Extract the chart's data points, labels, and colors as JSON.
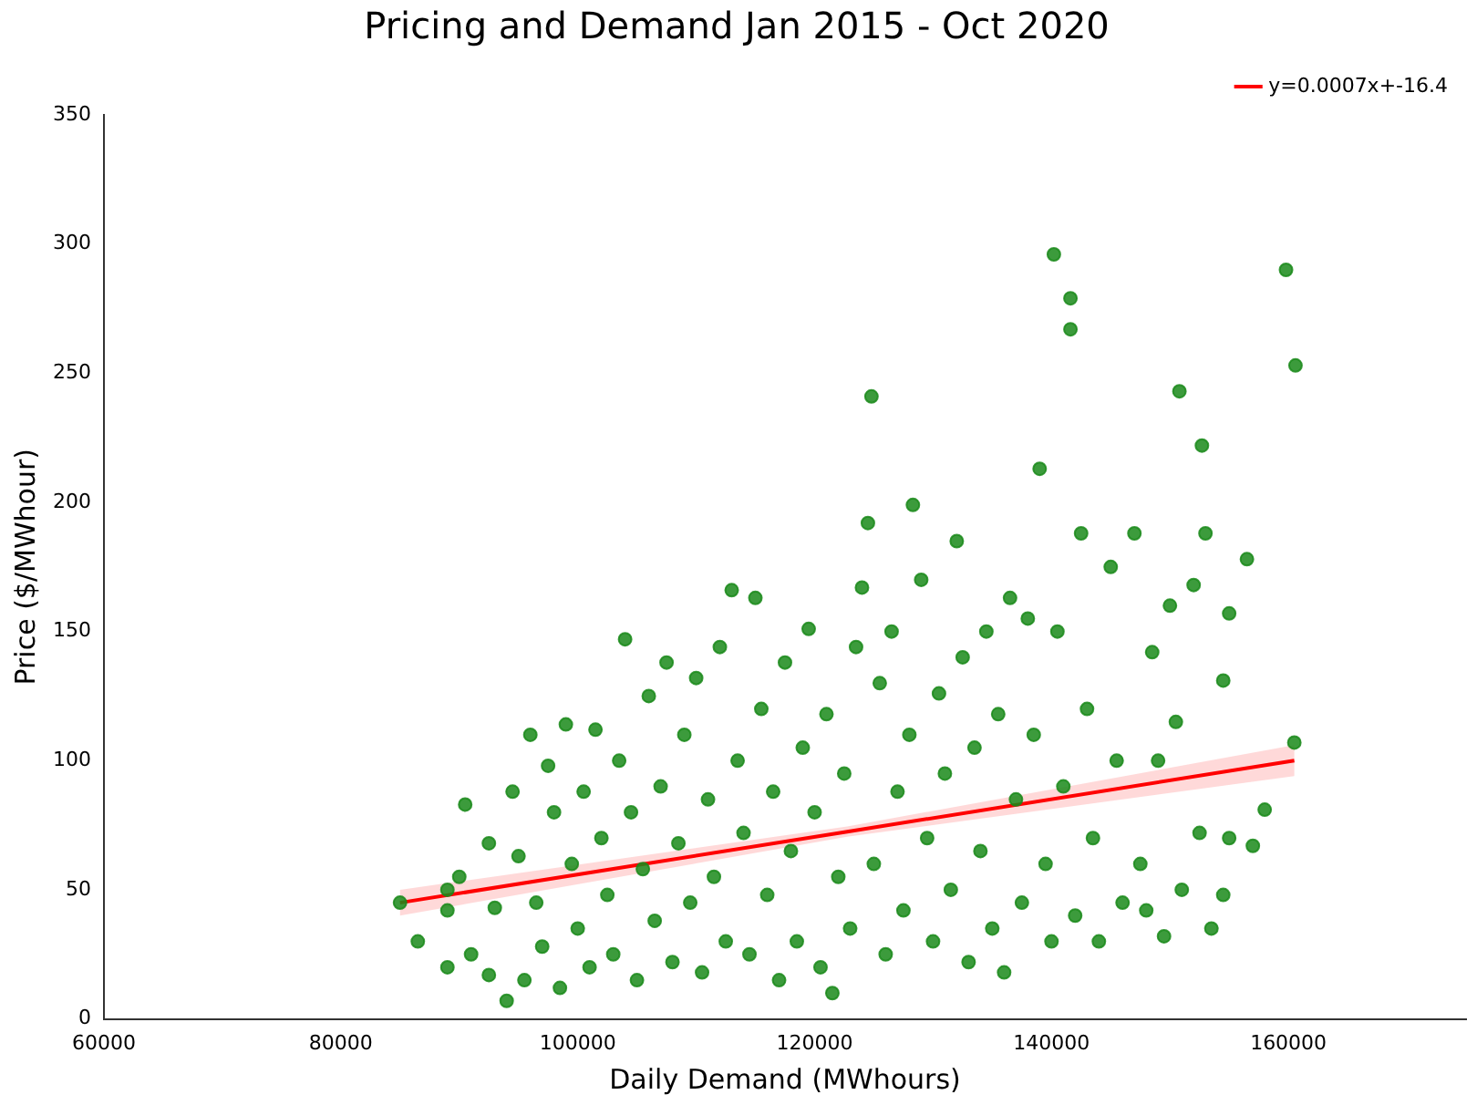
{
  "chart_data": {
    "type": "scatter",
    "title": "Pricing and Demand Jan 2015 - Oct 2020",
    "xlabel": "Daily Demand (MWhours)",
    "ylabel": "Price ($/MWhour)",
    "xlim": [
      60000,
      175000
    ],
    "xticks": [
      60000,
      80000,
      100000,
      120000,
      140000,
      160000
    ],
    "ylim": [
      0,
      350
    ],
    "yticks": [
      0,
      50,
      100,
      150,
      200,
      250,
      300,
      350
    ],
    "grid": false,
    "legend": "top right",
    "series": [
      {
        "marker": "circle",
        "color": "#1a8a1a",
        "x": [
          85000,
          86500,
          89000,
          89000,
          89000,
          90500,
          90000,
          91000,
          92500,
          92500,
          93000,
          94000,
          94500,
          95000,
          95500,
          96000,
          96500,
          97000,
          97500,
          98000,
          98500,
          99000,
          99500,
          100000,
          100500,
          101000,
          101500,
          102000,
          102500,
          103000,
          103500,
          104000,
          104500,
          105000,
          105500,
          106000,
          106500,
          107000,
          107500,
          108000,
          108500,
          109000,
          109500,
          110000,
          110500,
          111000,
          111500,
          112000,
          112500,
          113000,
          113500,
          114000,
          114500,
          115000,
          115500,
          116000,
          116500,
          117000,
          117500,
          118000,
          118500,
          119000,
          119500,
          120000,
          120500,
          121000,
          121500,
          122000,
          122500,
          123000,
          123500,
          124000,
          124500,
          124800,
          125000,
          125500,
          126000,
          126500,
          127000,
          127500,
          128000,
          128300,
          129000,
          129500,
          130000,
          130500,
          131000,
          131500,
          132000,
          132500,
          133000,
          133500,
          134000,
          134500,
          135000,
          135500,
          136000,
          136500,
          137000,
          137500,
          138000,
          138500,
          139000,
          139500,
          140000,
          140200,
          140500,
          141000,
          141600,
          141600,
          142000,
          142500,
          143000,
          143500,
          144000,
          145000,
          145500,
          146000,
          147000,
          147500,
          148000,
          148500,
          149000,
          149500,
          150000,
          150500,
          150800,
          151000,
          152000,
          152500,
          152700,
          153000,
          153500,
          154500,
          155000,
          155000,
          154500,
          156500,
          157000,
          158000,
          159800,
          160600,
          160500
        ],
        "values": [
          45,
          30,
          20,
          42,
          50,
          83,
          55,
          25,
          68,
          17,
          43,
          7,
          88,
          63,
          15,
          110,
          45,
          28,
          98,
          80,
          12,
          114,
          60,
          35,
          88,
          20,
          112,
          70,
          48,
          25,
          100,
          147,
          80,
          15,
          58,
          125,
          38,
          90,
          138,
          22,
          68,
          110,
          45,
          132,
          18,
          85,
          55,
          144,
          30,
          166,
          100,
          72,
          25,
          163,
          120,
          48,
          88,
          15,
          138,
          65,
          30,
          105,
          151,
          80,
          20,
          118,
          10,
          55,
          95,
          35,
          144,
          167,
          192,
          241,
          60,
          130,
          25,
          150,
          88,
          42,
          110,
          199,
          170,
          70,
          30,
          126,
          95,
          50,
          185,
          140,
          22,
          105,
          65,
          150,
          35,
          118,
          18,
          163,
          85,
          45,
          155,
          110,
          213,
          60,
          30,
          296,
          150,
          90,
          279,
          267,
          40,
          188,
          120,
          70,
          30,
          175,
          100,
          45,
          188,
          60,
          42,
          142,
          100,
          32,
          160,
          115,
          243,
          50,
          168,
          72,
          222,
          188,
          35,
          48,
          157,
          70,
          131,
          178,
          67,
          81,
          290,
          253,
          107
        ]
      },
      {
        "type": "line",
        "marker": "none",
        "name": "y=0.0007x+-16.4",
        "color": "#ff0000",
        "x": [
          85000,
          122750,
          160500
        ],
        "values": [
          45,
          72.5,
          100
        ],
        "lower": [
          40,
          70.5,
          94
        ],
        "upper": [
          50,
          74.5,
          106
        ]
      }
    ]
  }
}
